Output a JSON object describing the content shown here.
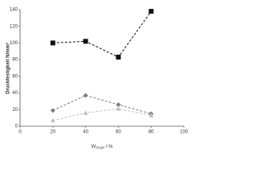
{
  "chart_data": {
    "type": "line",
    "ylabel": "Druckfestigkeit N/mm²",
    "xlabel": [
      "W",
      "Ziegel",
      " / %"
    ],
    "x": [
      20,
      40,
      60,
      80
    ],
    "series": [
      {
        "color": "#111111",
        "marker": "square",
        "values": [
          100,
          102,
          83,
          138
        ]
      },
      {
        "color": "#7f7f7f",
        "marker": "diamond",
        "values": [
          19,
          37,
          26,
          15
        ]
      },
      {
        "color": "#c0c0c0",
        "marker": "triangle",
        "values": [
          7,
          16,
          21,
          13
        ]
      }
    ],
    "xlim": [
      0,
      100
    ],
    "xticks": [
      0,
      20,
      40,
      60,
      80,
      100
    ],
    "ylim": [
      0,
      140
    ],
    "yticks": [
      0,
      20,
      40,
      60,
      80,
      100,
      120,
      140
    ],
    "dashed": true
  }
}
